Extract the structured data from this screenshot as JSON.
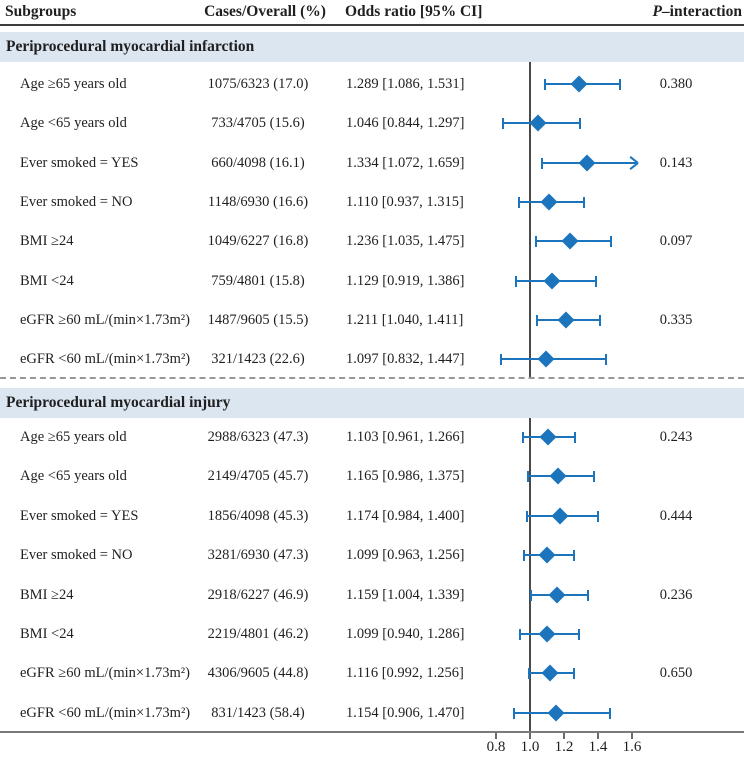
{
  "header": {
    "subgroups": "Subgroups",
    "cases": "Cases/Overall (%)",
    "odds_ratio": "Odds ratio [95% CI]",
    "p_prefix": "P",
    "p_rest": "–interaction"
  },
  "colors": {
    "accent": "#1b74bc",
    "section_band": "#dce6f1",
    "reference_line": "#4a4a4a",
    "text": "#1f1f1f"
  },
  "chart_data": {
    "type": "forest",
    "xlabel": "Odds ratio",
    "axis": {
      "ticks": [
        0.8,
        1.0,
        1.2,
        1.4,
        1.6
      ],
      "tick_labels": [
        "0.8",
        "1.0",
        "1.2",
        "1.4",
        "1.6"
      ],
      "reference_value": 1.0,
      "xlim": [
        0.76,
        1.66
      ]
    },
    "sections": [
      {
        "title": "Periprocedural myocardial infarction",
        "rows": [
          {
            "label": "Age ≥65 years old",
            "cases": "1075/6323 (17.0)",
            "or_text": "1.289 [1.086, 1.531]",
            "or": 1.289,
            "lo": 1.086,
            "hi": 1.531,
            "p": "0.380",
            "arrow": false
          },
          {
            "label": "Age <65 years old",
            "cases": "733/4705 (15.6)",
            "or_text": "1.046 [0.844, 1.297]",
            "or": 1.046,
            "lo": 0.844,
            "hi": 1.297,
            "p": "",
            "arrow": false
          },
          {
            "label": "Ever smoked = YES",
            "cases": "660/4098 (16.1)",
            "or_text": "1.334 [1.072, 1.659]",
            "or": 1.334,
            "lo": 1.072,
            "hi": 1.659,
            "p": "0.143",
            "arrow": true
          },
          {
            "label": "Ever smoked = NO",
            "cases": "1148/6930 (16.6)",
            "or_text": "1.110 [0.937, 1.315]",
            "or": 1.11,
            "lo": 0.937,
            "hi": 1.315,
            "p": "",
            "arrow": false
          },
          {
            "label": "BMI ≥24",
            "cases": "1049/6227 (16.8)",
            "or_text": "1.236 [1.035, 1.475]",
            "or": 1.236,
            "lo": 1.035,
            "hi": 1.475,
            "p": "0.097",
            "arrow": false
          },
          {
            "label": "BMI <24",
            "cases": "759/4801 (15.8)",
            "or_text": "1.129 [0.919, 1.386]",
            "or": 1.129,
            "lo": 0.919,
            "hi": 1.386,
            "p": "",
            "arrow": false
          },
          {
            "label": "eGFR ≥60 mL/(min×1.73m²)",
            "cases": "1487/9605 (15.5)",
            "or_text": "1.211 [1.040, 1.411]",
            "or": 1.211,
            "lo": 1.04,
            "hi": 1.411,
            "p": "0.335",
            "arrow": false
          },
          {
            "label": "eGFR <60 mL/(min×1.73m²)",
            "cases": "321/1423 (22.6)",
            "or_text": "1.097 [0.832, 1.447]",
            "or": 1.097,
            "lo": 0.832,
            "hi": 1.447,
            "p": "",
            "arrow": false
          }
        ]
      },
      {
        "title": "Periprocedural myocardial injury",
        "rows": [
          {
            "label": "Age ≥65 years old",
            "cases": "2988/6323 (47.3)",
            "or_text": "1.103 [0.961, 1.266]",
            "or": 1.103,
            "lo": 0.961,
            "hi": 1.266,
            "p": "0.243",
            "arrow": false
          },
          {
            "label": "Age <65 years old",
            "cases": "2149/4705 (45.7)",
            "or_text": "1.165 [0.986, 1.375]",
            "or": 1.165,
            "lo": 0.986,
            "hi": 1.375,
            "p": "",
            "arrow": false
          },
          {
            "label": "Ever smoked = YES",
            "cases": "1856/4098 (45.3)",
            "or_text": "1.174 [0.984, 1.400]",
            "or": 1.174,
            "lo": 0.984,
            "hi": 1.4,
            "p": "0.444",
            "arrow": false
          },
          {
            "label": "Ever smoked = NO",
            "cases": "3281/6930 (47.3)",
            "or_text": "1.099 [0.963, 1.256]",
            "or": 1.099,
            "lo": 0.963,
            "hi": 1.256,
            "p": "",
            "arrow": false
          },
          {
            "label": "BMI ≥24",
            "cases": "2918/6227 (46.9)",
            "or_text": "1.159 [1.004, 1.339]",
            "or": 1.159,
            "lo": 1.004,
            "hi": 1.339,
            "p": "0.236",
            "arrow": false
          },
          {
            "label": "BMI <24",
            "cases": "2219/4801 (46.2)",
            "or_text": "1.099 [0.940, 1.286]",
            "or": 1.099,
            "lo": 0.94,
            "hi": 1.286,
            "p": "",
            "arrow": false
          },
          {
            "label": "eGFR ≥60 mL/(min×1.73m²)",
            "cases": "4306/9605 (44.8)",
            "or_text": "1.116 [0.992, 1.256]",
            "or": 1.116,
            "lo": 0.992,
            "hi": 1.256,
            "p": "0.650",
            "arrow": false
          },
          {
            "label": "eGFR <60 mL/(min×1.73m²)",
            "cases": "831/1423 (58.4)",
            "or_text": "1.154 [0.906, 1.470]",
            "or": 1.154,
            "lo": 0.906,
            "hi": 1.47,
            "p": "",
            "arrow": false
          }
        ]
      }
    ]
  }
}
